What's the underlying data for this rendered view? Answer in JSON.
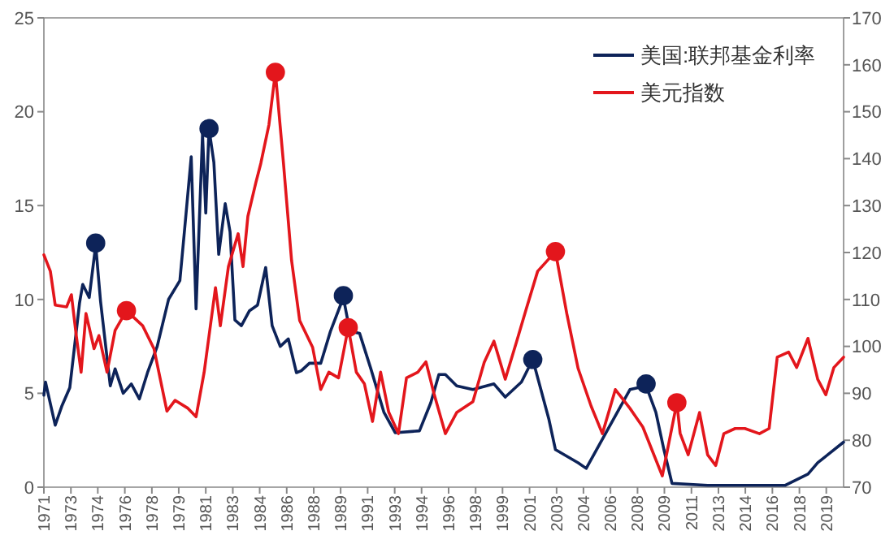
{
  "chart_data": {
    "type": "line",
    "xlim": [
      1971,
      2020.4
    ],
    "ylim": [
      0,
      25
    ],
    "yticks": [
      0,
      5,
      10,
      15,
      20,
      25
    ],
    "y2lim": [
      70,
      170
    ],
    "y2ticks": [
      70,
      80,
      90,
      100,
      110,
      120,
      130,
      140,
      150,
      160,
      170
    ],
    "xticks": [
      {
        "value": 1971,
        "label": "1971"
      },
      {
        "value": 1972.67,
        "label": "1973"
      },
      {
        "value": 1974.33,
        "label": "1974"
      },
      {
        "value": 1976,
        "label": "1976"
      },
      {
        "value": 1977.67,
        "label": "1978"
      },
      {
        "value": 1979.33,
        "label": "1979"
      },
      {
        "value": 1981,
        "label": "1981"
      },
      {
        "value": 1982.67,
        "label": "1983"
      },
      {
        "value": 1984.33,
        "label": "1984"
      },
      {
        "value": 1986,
        "label": "1986"
      },
      {
        "value": 1987.67,
        "label": "1988"
      },
      {
        "value": 1989.33,
        "label": "1989"
      },
      {
        "value": 1991,
        "label": "1991"
      },
      {
        "value": 1992.67,
        "label": "1993"
      },
      {
        "value": 1994.33,
        "label": "1994"
      },
      {
        "value": 1996,
        "label": "1996"
      },
      {
        "value": 1997.67,
        "label": "1998"
      },
      {
        "value": 1999.33,
        "label": "1999"
      },
      {
        "value": 2001,
        "label": "2001"
      },
      {
        "value": 2002.67,
        "label": "2003"
      },
      {
        "value": 2004.33,
        "label": "2004"
      },
      {
        "value": 2006,
        "label": "2006"
      },
      {
        "value": 2007.67,
        "label": "2008"
      },
      {
        "value": 2009.33,
        "label": "2009"
      },
      {
        "value": 2011,
        "label": "2011"
      },
      {
        "value": 2012.67,
        "label": "2013"
      },
      {
        "value": 2014.33,
        "label": "2014"
      },
      {
        "value": 2016,
        "label": "2016"
      },
      {
        "value": 2017.67,
        "label": "2018"
      },
      {
        "value": 2019.33,
        "label": "2019"
      }
    ],
    "grid": false,
    "legend": "top right",
    "marker": "none",
    "line_style": "solid",
    "series": [
      {
        "name": "美国:联邦基金利率",
        "color": "#0d2359",
        "x": [
          1971,
          1971.1,
          1971.7,
          1972.1,
          1972.6,
          1973.2,
          1973.4,
          1973.8,
          1974.2,
          1974.5,
          1975.1,
          1975.4,
          1975.9,
          1976.4,
          1976.9,
          1977.4,
          1978,
          1978.7,
          1979.4,
          1979.7,
          1980.1,
          1980.4,
          1980.8,
          1981,
          1981.2,
          1981.5,
          1981.8,
          1982.2,
          1982.5,
          1982.8,
          1983.2,
          1983.7,
          1984.2,
          1984.7,
          1985.1,
          1985.6,
          1986.1,
          1986.6,
          1986.9,
          1987.4,
          1988.1,
          1988.7,
          1989.5,
          1989.9,
          1990.5,
          1991.2,
          1992,
          1992.7,
          1994.2,
          1994.9,
          1995.4,
          1995.8,
          1996.5,
          1997.5,
          1998.8,
          1999.5,
          2000.5,
          2001.2,
          2002.2,
          2002.6,
          2004,
          2004.5,
          2007.2,
          2008.2,
          2008.8,
          2009.3,
          2009.8,
          2012,
          2014,
          2016.8,
          2018.2,
          2018.8,
          2020.4
        ],
        "values": [
          4.9,
          5.6,
          3.3,
          4.3,
          5.3,
          9.8,
          10.8,
          10.1,
          12.9,
          9.9,
          5.4,
          6.3,
          5,
          5.5,
          4.7,
          6.1,
          7.5,
          10,
          11,
          13.8,
          17.6,
          9.5,
          18.8,
          14.6,
          19.1,
          17.3,
          12.4,
          15.1,
          13.6,
          8.9,
          8.6,
          9.4,
          9.7,
          11.7,
          8.6,
          7.5,
          7.9,
          6.1,
          6.2,
          6.6,
          6.6,
          8.3,
          10.1,
          8.3,
          8.2,
          6.3,
          4,
          2.9,
          3,
          4.5,
          6,
          6,
          5.4,
          5.2,
          5.5,
          4.8,
          5.6,
          6.8,
          3.6,
          2,
          1.3,
          1,
          5.2,
          5.4,
          4,
          2,
          0.2,
          0.1,
          0.1,
          0.1,
          0.7,
          1.3,
          2.4
        ]
      },
      {
        "name": "美元指数",
        "color": "#e3161c",
        "axis": "y2",
        "x": [
          1971,
          1971.4,
          1971.7,
          1972.4,
          1972.7,
          1973,
          1973.3,
          1973.6,
          1974.1,
          1974.4,
          1974.9,
          1975.4,
          1976.1,
          1977.1,
          1977.8,
          1978.6,
          1979.1,
          1979.9,
          1980.4,
          1980.9,
          1981.6,
          1981.9,
          1982.4,
          1983,
          1983.3,
          1983.6,
          1984.1,
          1984.4,
          1984.9,
          1985.3,
          1985.8,
          1986.3,
          1986.8,
          1987.6,
          1988.1,
          1988.6,
          1989.2,
          1989.8,
          1990.3,
          1990.8,
          1991.3,
          1991.8,
          1992.3,
          1992.9,
          1993.4,
          1994.1,
          1994.6,
          1995.1,
          1995.8,
          1996.5,
          1997.5,
          1998.2,
          1998.8,
          1999.5,
          2000.2,
          2000.8,
          2001.5,
          2002.6,
          2003.3,
          2004,
          2004.8,
          2005.5,
          2006.3,
          2007.2,
          2008,
          2009.2,
          2010.1,
          2010.3,
          2010.8,
          2011.5,
          2012,
          2012.5,
          2013,
          2013.7,
          2014.3,
          2015.2,
          2015.8,
          2016.3,
          2017,
          2017.5,
          2018.2,
          2018.8,
          2019.3,
          2019.8,
          2020.4
        ],
        "values": [
          119.5,
          116,
          108.8,
          108.4,
          111,
          102.3,
          94.5,
          107,
          99.5,
          102.3,
          94.5,
          103.4,
          107.6,
          104.4,
          99.5,
          86.2,
          88.5,
          86.8,
          85,
          94.5,
          112.5,
          104.4,
          117,
          124,
          117,
          127.7,
          135,
          139,
          147.2,
          158.4,
          139,
          118.3,
          105.5,
          99.8,
          90.8,
          94.5,
          93.3,
          104,
          94.5,
          92,
          84,
          94.5,
          86,
          81.4,
          93.3,
          94.5,
          96.7,
          89.9,
          81.4,
          85.9,
          88.2,
          96.6,
          101.1,
          93,
          101,
          108,
          116,
          120.2,
          107,
          95.3,
          87.3,
          81.4,
          90.8,
          86.8,
          82.8,
          72.4,
          88,
          81.5,
          76.9,
          85.9,
          76.9,
          74.6,
          81.4,
          82.5,
          82.5,
          81.4,
          82.5,
          97.7,
          98.8,
          95.5,
          101.7,
          93,
          89.7,
          95.5,
          97.7
        ]
      },
      {
        "type": "scatter",
        "marker": "circle",
        "color": "#0d2359",
        "x": [
          1974.2,
          1981.2,
          1989.5,
          2001.2,
          2008.2
        ],
        "values": [
          13,
          19.1,
          10.2,
          6.8,
          5.5
        ]
      },
      {
        "type": "scatter",
        "marker": "circle",
        "color": "#e3161c",
        "axis": "y2",
        "x": [
          1976.1,
          1985.3,
          1989.8,
          2002.6,
          2010.1
        ],
        "values": [
          107.6,
          158.4,
          104,
          120.2,
          88
        ]
      }
    ]
  }
}
